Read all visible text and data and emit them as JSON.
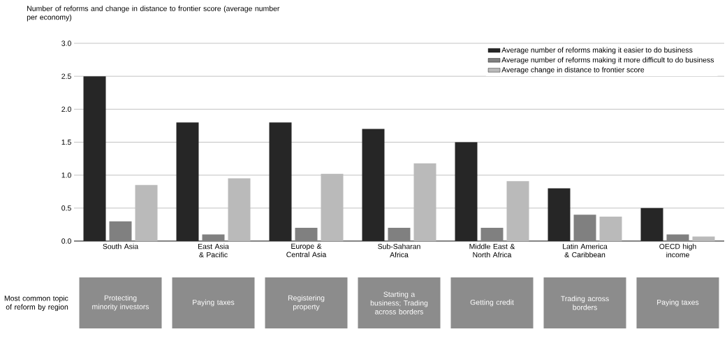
{
  "chart_data": {
    "type": "bar",
    "ylabel": "Number of reforms and change in distance to frontier score (average number per economy)",
    "categories": [
      "South Asia",
      "East Asia & Pacific",
      "Europe & Central Asia",
      "Sub-Saharan Africa",
      "Middle East & North Africa",
      "Latin America & Caribbean",
      "OECD high income"
    ],
    "series": [
      {
        "name": "Average number of reforms making it easier to do business",
        "color": "#262626",
        "values": [
          2.5,
          1.8,
          1.8,
          1.7,
          1.5,
          0.8,
          0.5
        ]
      },
      {
        "name": "Average number of reforms making it more difficult to do business",
        "color": "#808080",
        "values": [
          0.3,
          0.1,
          0.2,
          0.2,
          0.2,
          0.4,
          0.1
        ]
      },
      {
        "name": "Average change in distance to frontier score",
        "color": "#bababa",
        "values": [
          0.85,
          0.95,
          1.02,
          1.18,
          0.91,
          0.37,
          0.07
        ]
      }
    ],
    "ylim": [
      0,
      3
    ],
    "yticks": [
      {
        "value": 0,
        "label": "0.0"
      },
      {
        "value": 0.5,
        "label": "0.5"
      },
      {
        "value": 1,
        "label": "1.0"
      },
      {
        "value": 1.5,
        "label": "1.5"
      },
      {
        "value": 2,
        "label": "2.0"
      },
      {
        "value": 2.5,
        "label": "2.5"
      },
      {
        "value": 3,
        "label": "3.0"
      }
    ],
    "grid": "y",
    "legend": "top right",
    "annotations": [
      "Most common topic of reform by region",
      "Protecting minority investors",
      "Paying taxes",
      "Registering property",
      "Starting a business; Trading across borders",
      "Getting credit",
      "Trading across borders",
      "Paying taxes"
    ]
  }
}
